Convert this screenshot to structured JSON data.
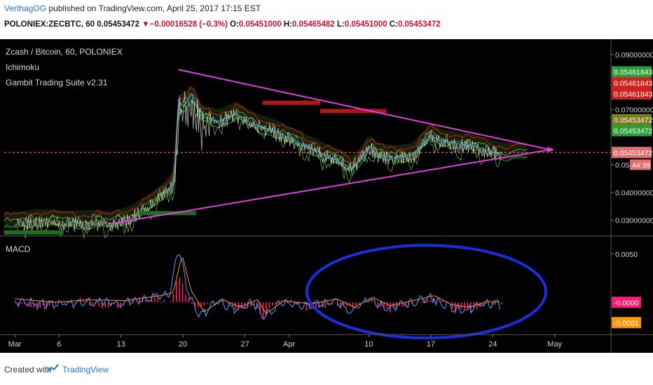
{
  "header": {
    "author": "VerthagOG",
    "published_text": "published on TradingView.com, April 25, 2017 17:15 EST",
    "symbol": "POLONIEX:ZECBTC, 60",
    "last_price": "0.05453472",
    "change_arrow": "▼",
    "change": "−0.00016528 (−0.3%)",
    "o_label": "O:",
    "o_value": "0.05451000",
    "h_label": "H:",
    "h_value": "0.05465482",
    "l_label": "L:",
    "l_value": "0.05451000",
    "c_label": "C:",
    "c_value": "0.05453472"
  },
  "legend": {
    "title": "Zcash / Bitcoin, 60, POLONIEX",
    "indicator1": "Ichimoku",
    "indicator2": "Gambit Trading Suite v2.31",
    "macd_label": "MACD"
  },
  "price_axis": {
    "ticks": [
      {
        "value": 0.09,
        "label": "0.09000000"
      },
      {
        "value": 0.07,
        "label": "0.07000000"
      },
      {
        "value": 0.05,
        "label": "0.050"
      },
      {
        "value": 0.04,
        "label": "0.04000000"
      },
      {
        "value": 0.03,
        "label": "0.03000000"
      }
    ],
    "badges": [
      {
        "label": "0.05461843",
        "color": "#2e9e3a",
        "value": 0.0837
      },
      {
        "label": "0.05461843",
        "color": "#d21f1f",
        "value": 0.0797
      },
      {
        "label": "0.05461843",
        "color": "#d21f1f",
        "value": 0.0757
      },
      {
        "label": "0.05453472",
        "color": "#7b7b1e",
        "value": 0.0664
      },
      {
        "label": "0.05453472",
        "color": "#2e9e3a",
        "value": 0.0624
      },
      {
        "label": "0.05453472",
        "color": "#e07070",
        "value": 0.0545
      }
    ],
    "countdown": "44:39",
    "countdown_color": "#e07070"
  },
  "macd_axis": {
    "ticks": [
      {
        "value": 0.005,
        "label": "0.0050"
      }
    ],
    "badges": [
      {
        "label": "-0.0000",
        "color": "#ff1a6e",
        "value": 0.0
      },
      {
        "label": "-0.0001",
        "color": "#ff9800",
        "value": -0.0021
      }
    ]
  },
  "time_axis": {
    "labels": [
      "Mar",
      "6",
      "13",
      "20",
      "27",
      "Apr",
      "10",
      "17",
      "24",
      "May"
    ]
  },
  "chart_data": {
    "type": "line",
    "symbol": "ZECBTC",
    "timeframe": "60",
    "last_price": 0.05453472,
    "price_range": [
      0.0245,
      0.093
    ],
    "macd_range": [
      -0.0032,
      0.0068
    ],
    "price_series": [
      {
        "day": 0,
        "v": 0.0295
      },
      {
        "day": 3,
        "v": 0.0305
      },
      {
        "day": 6,
        "v": 0.0298
      },
      {
        "day": 9,
        "v": 0.0302
      },
      {
        "day": 11,
        "v": 0.0296
      },
      {
        "day": 13,
        "v": 0.0315
      },
      {
        "day": 15,
        "v": 0.0355
      },
      {
        "day": 17,
        "v": 0.0405
      },
      {
        "day": 18,
        "v": 0.0445
      },
      {
        "day": 18.5,
        "v": 0.0745
      },
      {
        "day": 19,
        "v": 0.0715
      },
      {
        "day": 20,
        "v": 0.0765
      },
      {
        "day": 21,
        "v": 0.0685
      },
      {
        "day": 23,
        "v": 0.0665
      },
      {
        "day": 25,
        "v": 0.0695
      },
      {
        "day": 27,
        "v": 0.0655
      },
      {
        "day": 29,
        "v": 0.0635
      },
      {
        "day": 31,
        "v": 0.0605
      },
      {
        "day": 33,
        "v": 0.0575
      },
      {
        "day": 35,
        "v": 0.0545
      },
      {
        "day": 37,
        "v": 0.0515
      },
      {
        "day": 38,
        "v": 0.0495
      },
      {
        "day": 39,
        "v": 0.0525
      },
      {
        "day": 40,
        "v": 0.0575
      },
      {
        "day": 41,
        "v": 0.0545
      },
      {
        "day": 43,
        "v": 0.0535
      },
      {
        "day": 45,
        "v": 0.0545
      },
      {
        "day": 47,
        "v": 0.0615
      },
      {
        "day": 48,
        "v": 0.0595
      },
      {
        "day": 50,
        "v": 0.0585
      },
      {
        "day": 52,
        "v": 0.0575
      },
      {
        "day": 54,
        "v": 0.0555
      },
      {
        "day": 55,
        "v": 0.0545
      }
    ],
    "macd_series": [
      {
        "day": 0,
        "v": 0.0004
      },
      {
        "day": 4,
        "v": 0.0
      },
      {
        "day": 8,
        "v": 0.0003
      },
      {
        "day": 12,
        "v": 0.0002
      },
      {
        "day": 16,
        "v": 0.0008
      },
      {
        "day": 17.5,
        "v": 0.0012
      },
      {
        "day": 18.5,
        "v": 0.0058
      },
      {
        "day": 19.5,
        "v": 0.0015
      },
      {
        "day": 21,
        "v": -0.0012
      },
      {
        "day": 23,
        "v": 0.0004
      },
      {
        "day": 25,
        "v": -0.0006
      },
      {
        "day": 27,
        "v": 0.0003
      },
      {
        "day": 28,
        "v": -0.0014
      },
      {
        "day": 30,
        "v": 0.0002
      },
      {
        "day": 33,
        "v": -0.0002
      },
      {
        "day": 36,
        "v": 0.0004
      },
      {
        "day": 38,
        "v": -0.0006
      },
      {
        "day": 40,
        "v": 0.0006
      },
      {
        "day": 42,
        "v": -0.0004
      },
      {
        "day": 45,
        "v": 0.0003
      },
      {
        "day": 47,
        "v": 0.0008
      },
      {
        "day": 49,
        "v": -0.0003
      },
      {
        "day": 51,
        "v": -0.0006
      },
      {
        "day": 53,
        "v": 0.0001
      },
      {
        "day": 55,
        "v": 0.0
      }
    ],
    "time_ticks": [
      {
        "day": 0,
        "label": "Mar"
      },
      {
        "day": 5,
        "label": "6"
      },
      {
        "day": 12,
        "label": "13"
      },
      {
        "day": 19,
        "label": "20"
      },
      {
        "day": 26,
        "label": "27"
      },
      {
        "day": 31,
        "label": "Apr"
      },
      {
        "day": 40,
        "label": "10"
      },
      {
        "day": 47,
        "label": "17"
      },
      {
        "day": 54,
        "label": "24"
      },
      {
        "day": 61,
        "label": "May"
      }
    ],
    "day_range": [
      -1.2,
      67.2
    ],
    "annotations": {
      "triangle_upper": [
        {
          "day": 18.5,
          "v": 0.0845
        },
        {
          "day": 60.5,
          "v": 0.0555
        }
      ],
      "triangle_lower": [
        {
          "day": 10.5,
          "v": 0.0285
        },
        {
          "day": 60.5,
          "v": 0.0555
        }
      ],
      "current_price_line": 0.0545,
      "resistance_boxes": [
        {
          "start": 28.0,
          "end": 34.5,
          "v": 0.0725
        },
        {
          "start": 34.5,
          "end": 42.0,
          "v": 0.0695
        }
      ],
      "support_boxes": [
        {
          "start": -1.2,
          "end": 5.5,
          "v": 0.0255
        },
        {
          "start": 14.0,
          "end": 20.5,
          "v": 0.0325
        }
      ],
      "macd_ellipse": {
        "start": 33.0,
        "end": 60.0,
        "center_v": 0.0011,
        "half_height": 0.0048
      }
    }
  }
}
